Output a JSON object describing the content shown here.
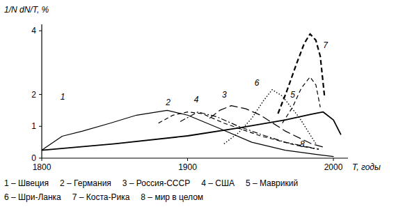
{
  "chart_data": {
    "type": "line",
    "y_label": "1/N dN/T, %",
    "x_label": "T, годы",
    "xlim": [
      1800,
      2010
    ],
    "xticks": [
      1800,
      1900,
      2000
    ],
    "ylim": [
      0,
      4.2
    ],
    "yticks": [
      0,
      1,
      2,
      4
    ],
    "grid": false,
    "legend": "bottom",
    "series": [
      {
        "name": "1 – Швеция",
        "label": "1",
        "color": "#000000",
        "line_style": "solid",
        "x": [
          1800,
          1814,
          1828,
          1847,
          1865,
          1886,
          1900,
          1921,
          1944,
          1967,
          1991,
          2000
        ],
        "values": [
          0.25,
          0.69,
          0.85,
          1.1,
          1.35,
          1.5,
          1.35,
          0.95,
          0.5,
          0.25,
          0.1,
          0.05
        ]
      },
      {
        "name": "2 – Германия",
        "label": "2",
        "color": "#000000",
        "line_style": "dashed",
        "x": [
          1880,
          1890,
          1900,
          1910,
          1925,
          1950,
          1975,
          1990
        ],
        "values": [
          1.1,
          1.35,
          1.45,
          1.4,
          1.1,
          0.7,
          0.4,
          0.28
        ]
      },
      {
        "name": "3 – Россия-СССР",
        "label": "3",
        "color": "#000000",
        "line_style": "long_dashed",
        "x": [
          1915,
          1922,
          1930,
          1940,
          1950,
          1967,
          1985,
          1993
        ],
        "values": [
          1.25,
          1.5,
          1.65,
          1.55,
          1.35,
          0.85,
          0.45,
          0.35
        ]
      },
      {
        "name": "4 – США",
        "label": "4",
        "color": "#000000",
        "line_style": "dash_dot",
        "x": [
          1895,
          1907,
          1920,
          1935,
          1950,
          1967,
          1990
        ],
        "values": [
          1.15,
          1.45,
          1.3,
          1.0,
          0.75,
          0.5,
          0.28
        ]
      },
      {
        "name": "5 – Маврикий",
        "label": "5",
        "color": "#000000",
        "line_style": "dashed",
        "x": [
          1965,
          1972,
          1978,
          1984,
          1988,
          1991
        ],
        "values": [
          1.1,
          1.6,
          2.2,
          2.55,
          2.3,
          1.6
        ]
      },
      {
        "name": "6 – Шри-Ланка",
        "label": "6",
        "color": "#000000",
        "line_style": "dotted",
        "x": [
          1925,
          1935,
          1944,
          1952,
          1958,
          1965,
          1977,
          1988
        ],
        "values": [
          0.45,
          0.8,
          1.25,
          1.8,
          2.15,
          1.95,
          1.25,
          0.45
        ]
      },
      {
        "name": "7 – Коста-Рика",
        "label": "7",
        "color": "#000000",
        "line_style": "bold_dashed",
        "x": [
          1962,
          1968,
          1975,
          1980,
          1984,
          1988,
          1991,
          1994
        ],
        "values": [
          1.4,
          2.1,
          3.0,
          3.6,
          3.9,
          3.7,
          3.2,
          1.9
        ]
      },
      {
        "name": "8 – мир в целом",
        "label": "8",
        "color": "#000000",
        "line_style": "bold_solid",
        "x": [
          1800,
          1850,
          1900,
          1935,
          1967,
          1985,
          1993,
          2000,
          2005
        ],
        "values": [
          0.25,
          0.45,
          0.7,
          0.95,
          1.2,
          1.38,
          1.45,
          1.2,
          0.75
        ]
      }
    ]
  }
}
